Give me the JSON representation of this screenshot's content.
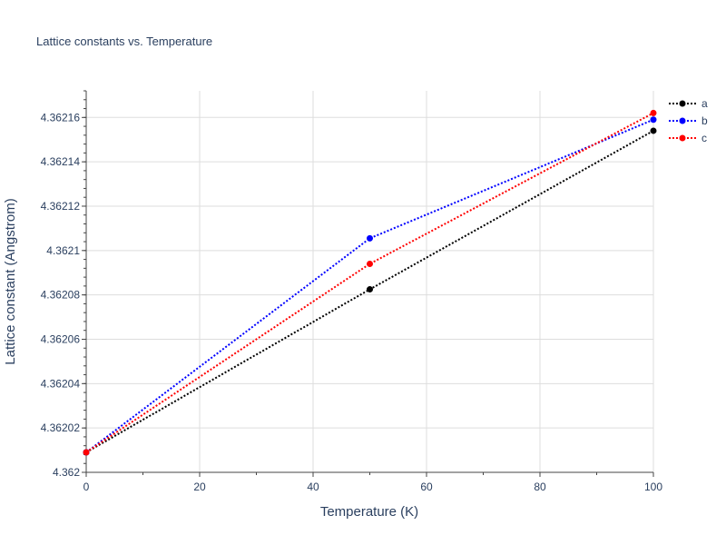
{
  "chart_data": {
    "type": "line",
    "title": "Lattice constants vs. Temperature",
    "xlabel": "Temperature (K)",
    "ylabel": "Lattice constant (Angstrom)",
    "xlim": [
      0,
      100
    ],
    "ylim": [
      4.362,
      4.362172
    ],
    "grid": true,
    "legend_position": "top-right",
    "x_ticks": [
      "0",
      "20",
      "40",
      "60",
      "80",
      "100"
    ],
    "y_ticks": [
      "4.362",
      "4.36202",
      "4.36204",
      "4.36206",
      "4.36208",
      "4.3621",
      "4.36212",
      "4.36214",
      "4.36216"
    ],
    "series": [
      {
        "name": "a",
        "color": "#000000",
        "x": [
          0,
          50,
          100
        ],
        "y": [
          4.362009,
          4.3620825,
          4.362154
        ]
      },
      {
        "name": "b",
        "color": "#0000ff",
        "x": [
          0,
          50,
          100
        ],
        "y": [
          4.362009,
          4.3621055,
          4.362159
        ]
      },
      {
        "name": "c",
        "color": "#ff0000",
        "x": [
          0,
          50,
          100
        ],
        "y": [
          4.362009,
          4.362094,
          4.362162
        ]
      }
    ]
  }
}
